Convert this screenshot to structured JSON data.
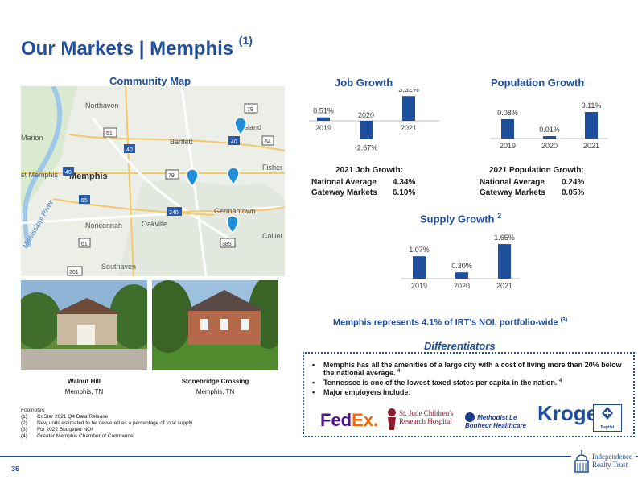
{
  "page": {
    "title": "Our Markets | Memphis",
    "title_sup": "(1)",
    "number": "36"
  },
  "map": {
    "heading": "Community Map",
    "labels": [
      "Northaven",
      "Bartlett",
      "Island",
      "Fisher",
      "Memphis",
      "Germantown",
      "Nonconnah",
      "Oakville",
      "Collier",
      "Southaven",
      "Mississippi River",
      "Marion",
      "st Memphis"
    ],
    "routes": [
      "79",
      "51",
      "40",
      "40",
      "64",
      "79",
      "40",
      "55",
      "240",
      "385",
      "61",
      "301"
    ],
    "pin_count": 4
  },
  "properties": [
    {
      "name": "Walnut Hill",
      "location": "Memphis, TN"
    },
    {
      "name": "Stonebridge Crossing",
      "location": "Memphis, TN"
    }
  ],
  "job_growth": {
    "heading": "Job Growth",
    "stat_title": "2021 Job Growth:",
    "rows": [
      {
        "label": "National Average",
        "value": "4.34%"
      },
      {
        "label": "Gateway Markets",
        "value": "6.10%"
      }
    ]
  },
  "pop_growth": {
    "heading": "Population Growth",
    "stat_title": "2021 Population Growth:",
    "rows": [
      {
        "label": "National Average",
        "value": "0.24%"
      },
      {
        "label": "Gateway Markets",
        "value": "0.05%"
      }
    ]
  },
  "supply_growth": {
    "heading": "Supply Growth",
    "sup": "2"
  },
  "chart_data": [
    {
      "type": "bar",
      "title": "Job Growth",
      "categories": [
        "2019",
        "2020",
        "2021"
      ],
      "values": [
        0.51,
        -2.67,
        3.62
      ],
      "labels": [
        "0.51%",
        "-2.67%",
        "3.62%"
      ]
    },
    {
      "type": "bar",
      "title": "Population Growth",
      "categories": [
        "2019",
        "2020",
        "2021"
      ],
      "values": [
        0.08,
        0.01,
        0.11
      ],
      "labels": [
        "0.08%",
        "0.01%",
        "0.11%"
      ]
    },
    {
      "type": "bar",
      "title": "Supply Growth",
      "categories": [
        "2019",
        "2020",
        "2021"
      ],
      "values": [
        1.07,
        0.3,
        1.65
      ],
      "labels": [
        "1.07%",
        "0.30%",
        "1.65%"
      ]
    }
  ],
  "noi_line": {
    "text": "Memphis represents 4.1% of IRT’s NOI, portfolio-wide",
    "sup": "(3)"
  },
  "differentiators": {
    "heading": "Differentiators",
    "bullets": [
      {
        "text": "Memphis has all the amenities of a large city with a cost of living more than 20% below the national average.",
        "sup": "4"
      },
      {
        "text": "Tennessee is one of the lowest-taxed states per capita in the nation.",
        "sup": "4"
      },
      {
        "text": "Major employers include:",
        "sup": ""
      }
    ],
    "employers": [
      "FedEx.",
      "St. Jude Children's Research Hospital",
      "Methodist Le Bonheur Healthcare",
      "Kroger",
      "Baptist"
    ]
  },
  "footnotes": {
    "heading": "Footnotes:",
    "items": [
      {
        "n": "(1)",
        "t": "CoStar 2021 Q4 Data Release"
      },
      {
        "n": "(2)",
        "t": "New units estimated to be delivered as a percentage of total supply"
      },
      {
        "n": "(3)",
        "t": "For 2022 Budgeted NOI"
      },
      {
        "n": "(4)",
        "t": "Greater Memphis Chamber of Commerce"
      }
    ]
  },
  "logo": {
    "line1": "Independence",
    "line2": "Realty Trust"
  },
  "colors": {
    "brand": "#1f4e9c",
    "bar": "#1f4e9c",
    "pin": "#1f8fd8"
  }
}
